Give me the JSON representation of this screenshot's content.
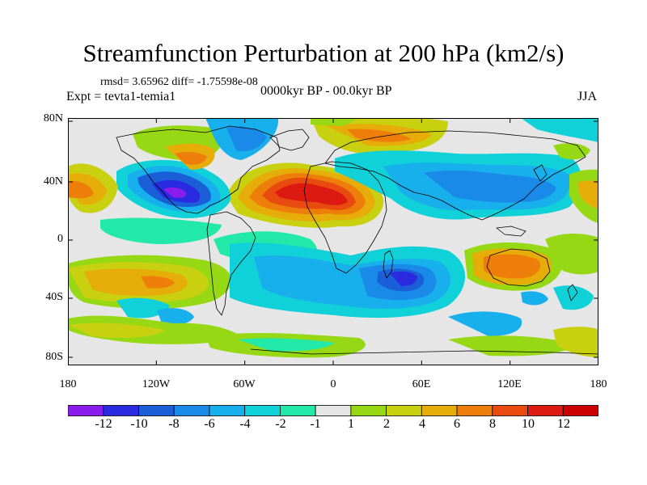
{
  "title": "Streamfunction Perturbation at 200 hPa (km2/s)",
  "stats": "rmsd= 3.65962 diff= -1.75598e-08",
  "experiment": "Expt = tevta1-temia1",
  "period": "0000kyr BP - 00.0kyr BP",
  "season": "JJA",
  "y_ticks": [
    "80N",
    "40N",
    "0",
    "40S",
    "80S"
  ],
  "x_ticks": [
    "180",
    "120W",
    "60W",
    "0",
    "60E",
    "120E",
    "180"
  ],
  "colorbar": {
    "labels": [
      "-12",
      "-10",
      "-8",
      "-6",
      "-4",
      "-2",
      "-1",
      "1",
      "2",
      "4",
      "6",
      "8",
      "10",
      "12"
    ],
    "colors": [
      "#8a1cee",
      "#2a2ae0",
      "#1a5ed8",
      "#1a8ae8",
      "#18b0ec",
      "#10d0d8",
      "#22e8a8",
      "#e6e6e6",
      "#96d814",
      "#c8d010",
      "#e6ac08",
      "#ee7e0a",
      "#e84a10",
      "#dc1a12",
      "#cc0000"
    ]
  },
  "map": {
    "background": "#e6e6e6",
    "field_features": [
      {
        "id": "neg-centre-north-america",
        "lon": -105,
        "lat": 30,
        "value": -10
      },
      {
        "id": "pos-centre-north-atlantic-africa",
        "lon": -20,
        "lat": 28,
        "value": 10
      },
      {
        "id": "neg-centre-south-indian-ocean",
        "lon": 50,
        "lat": -25,
        "value": -10
      },
      {
        "id": "neg-band-asia",
        "lon": 80,
        "lat": 30,
        "value": -4
      },
      {
        "id": "pos-band-north-asia",
        "lon": 40,
        "lat": 65,
        "value": 6
      },
      {
        "id": "pos-centre-australia",
        "lon": 135,
        "lat": -25,
        "value": 6
      },
      {
        "id": "pos-centre-south-pacific",
        "lon": -150,
        "lat": -25,
        "value": 6
      }
    ]
  }
}
